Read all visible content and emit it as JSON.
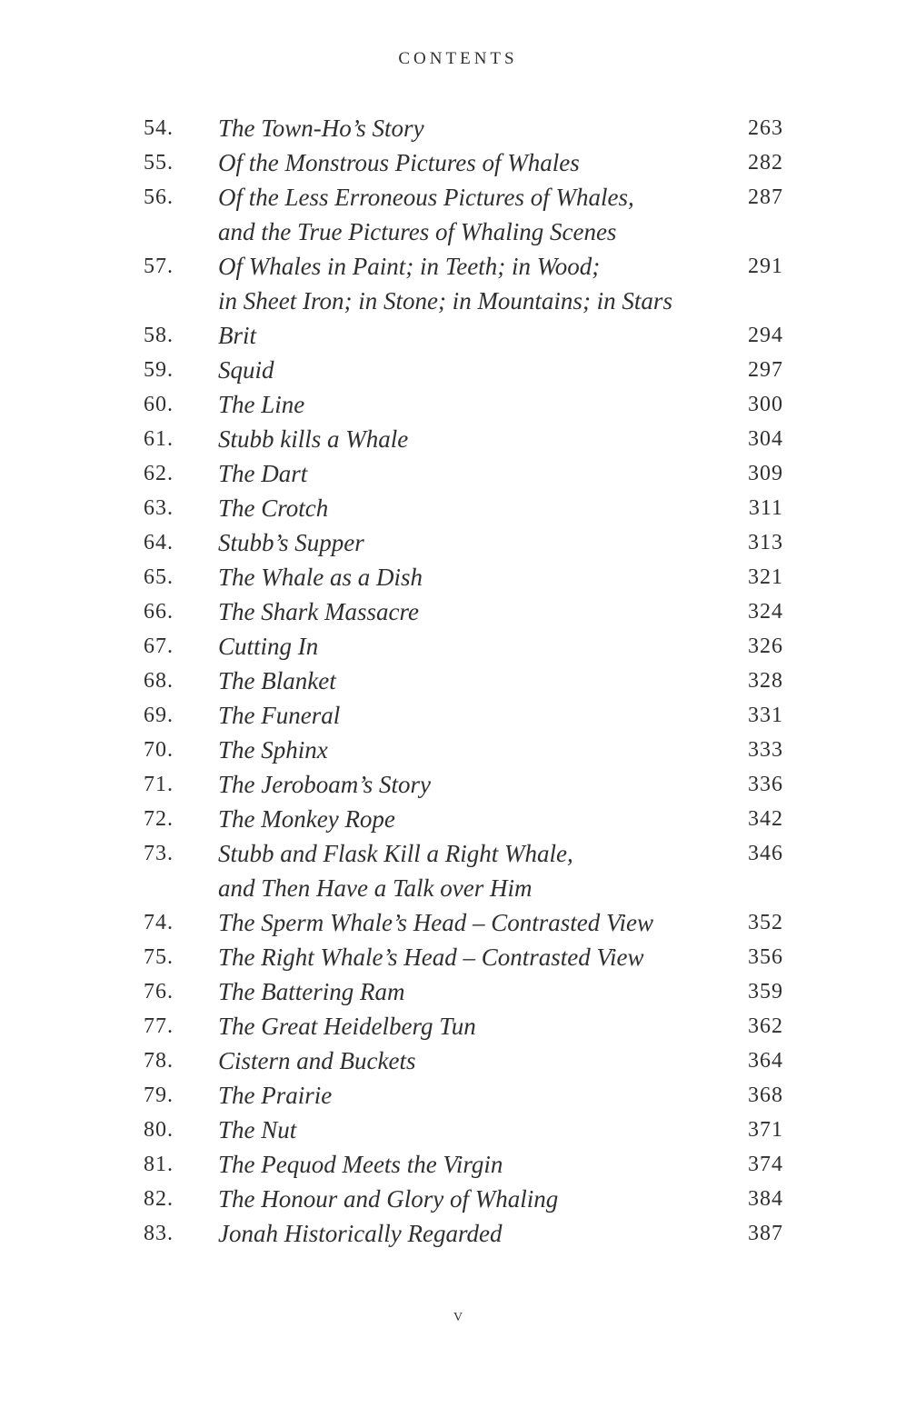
{
  "page": {
    "title": "CONTENTS",
    "folio": "v"
  },
  "colors": {
    "text": "#2f2f2f",
    "background": "#ffffff"
  },
  "toc_entries": [
    {
      "num": "54.",
      "lines": [
        "The Town-Ho’s Story"
      ],
      "page": "263"
    },
    {
      "num": "55.",
      "lines": [
        "Of the Monstrous Pictures of Whales"
      ],
      "page": "282"
    },
    {
      "num": "56.",
      "lines": [
        "Of the Less Erroneous Pictures of Whales,",
        "and the True Pictures of Whaling Scenes"
      ],
      "page": "287"
    },
    {
      "num": "57.",
      "lines": [
        "Of Whales in Paint; in Teeth; in Wood;",
        "in Sheet Iron; in Stone; in Mountains; in Stars"
      ],
      "page": "291"
    },
    {
      "num": "58.",
      "lines": [
        "Brit"
      ],
      "page": "294"
    },
    {
      "num": "59.",
      "lines": [
        "Squid"
      ],
      "page": "297"
    },
    {
      "num": "60.",
      "lines": [
        "The Line"
      ],
      "page": "300"
    },
    {
      "num": "61.",
      "lines": [
        "Stubb kills a Whale"
      ],
      "page": "304"
    },
    {
      "num": "62.",
      "lines": [
        "The Dart"
      ],
      "page": "309"
    },
    {
      "num": "63.",
      "lines": [
        "The Crotch"
      ],
      "page": "311"
    },
    {
      "num": "64.",
      "lines": [
        "Stubb’s Supper"
      ],
      "page": "313"
    },
    {
      "num": "65.",
      "lines": [
        "The Whale as a Dish"
      ],
      "page": "321"
    },
    {
      "num": "66.",
      "lines": [
        "The Shark Massacre"
      ],
      "page": "324"
    },
    {
      "num": "67.",
      "lines": [
        "Cutting In"
      ],
      "page": "326"
    },
    {
      "num": "68.",
      "lines": [
        "The Blanket"
      ],
      "page": "328"
    },
    {
      "num": "69.",
      "lines": [
        "The Funeral"
      ],
      "page": "331"
    },
    {
      "num": "70.",
      "lines": [
        "The Sphinx"
      ],
      "page": "333"
    },
    {
      "num": "71.",
      "lines": [
        "The Jeroboam’s Story"
      ],
      "page": "336"
    },
    {
      "num": "72.",
      "lines": [
        "The Monkey Rope"
      ],
      "page": "342"
    },
    {
      "num": "73.",
      "lines": [
        "Stubb and Flask Kill a Right Whale,",
        "and Then Have a Talk over Him"
      ],
      "page": "346"
    },
    {
      "num": "74.",
      "lines": [
        "The Sperm Whale’s Head – Contrasted View"
      ],
      "page": "352"
    },
    {
      "num": "75.",
      "lines": [
        "The Right Whale’s Head – Contrasted View"
      ],
      "page": "356"
    },
    {
      "num": "76.",
      "lines": [
        "The Battering Ram"
      ],
      "page": "359"
    },
    {
      "num": "77.",
      "lines": [
        "The Great Heidelberg Tun"
      ],
      "page": "362"
    },
    {
      "num": "78.",
      "lines": [
        "Cistern and Buckets"
      ],
      "page": "364"
    },
    {
      "num": "79.",
      "lines": [
        "The Prairie"
      ],
      "page": "368"
    },
    {
      "num": "80.",
      "lines": [
        "The Nut"
      ],
      "page": "371"
    },
    {
      "num": "81.",
      "lines": [
        "The Pequod Meets the Virgin"
      ],
      "page": "374"
    },
    {
      "num": "82.",
      "lines": [
        "The Honour and Glory of Whaling"
      ],
      "page": "384"
    },
    {
      "num": "83.",
      "lines": [
        "Jonah Historically Regarded"
      ],
      "page": "387"
    }
  ]
}
